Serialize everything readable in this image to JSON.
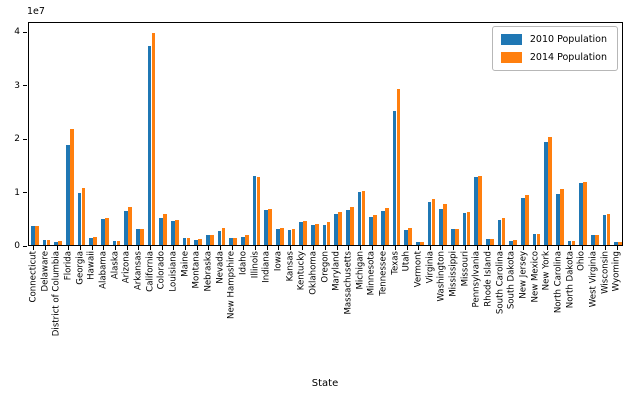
{
  "chart_data": {
    "type": "bar",
    "title": "",
    "xlabel": "State",
    "ylabel": "",
    "ylabel_offset_text": "1e7",
    "grid": false,
    "legend_position": "upper right",
    "ylim": [
      0,
      41950000
    ],
    "yticks": [
      {
        "value": 0,
        "label": "0"
      },
      {
        "value": 10000000,
        "label": "1"
      },
      {
        "value": 20000000,
        "label": "2"
      },
      {
        "value": 30000000,
        "label": "3"
      },
      {
        "value": 40000000,
        "label": "4"
      }
    ],
    "categories": [
      "Connecticut",
      "Delaware",
      "District of Columbia",
      "Florida",
      "Georgia",
      "Hawaii",
      "Alabama",
      "Alaska",
      "Arizona",
      "Arkansas",
      "California",
      "Colorado",
      "Louisiana",
      "Maine",
      "Montana",
      "Nebraska",
      "Nevada",
      "New Hampshire",
      "Idaho",
      "Illinois",
      "Indiana",
      "Iowa",
      "Kansas",
      "Kentucky",
      "Oklahoma",
      "Oregon",
      "Maryland",
      "Massachusetts",
      "Michigan",
      "Minnesota",
      "Tennessee",
      "Texas",
      "Utah",
      "Vermont",
      "Virginia",
      "Washington",
      "Mississippi",
      "Missouri",
      "Pennsylvania",
      "Rhode Island",
      "South Carolina",
      "South Dakota",
      "New Jersey",
      "New Mexico",
      "New York",
      "North Carolina",
      "North Dakota",
      "Ohio",
      "West Virginia",
      "Wisconsin",
      "Wyoming"
    ],
    "series": [
      {
        "name": "2010 Population",
        "color": "#1f77b4",
        "values": [
          3574097,
          897934,
          601723,
          18801310,
          9687653,
          1360301,
          4779736,
          710231,
          6392017,
          2915918,
          37253956,
          5029196,
          4533372,
          1328361,
          989415,
          1826341,
          2700551,
          1316470,
          1567582,
          12830632,
          6483802,
          3046355,
          2853118,
          4339367,
          3751351,
          3831074,
          5773552,
          6547629,
          9883640,
          5303925,
          6346105,
          25145561,
          2763885,
          625741,
          8001024,
          6724540,
          2967297,
          5988927,
          12702379,
          1052567,
          4625364,
          814180,
          8791894,
          2059179,
          19378102,
          9535483,
          672591,
          11536504,
          1852994,
          5686986,
          563626
        ]
      },
      {
        "name": "2014 Population",
        "color": "#ff7f0e",
        "values": [
          3605944,
          989948,
          689545,
          21700000,
          10711937,
          1455271,
          5024279,
          733391,
          7151502,
          3011524,
          39700000,
          5773714,
          4657757,
          1362359,
          1084225,
          1961504,
          3104614,
          1377529,
          1839106,
          12812508,
          6785528,
          3190369,
          2937880,
          4505836,
          3959353,
          4237256,
          6177224,
          7029917,
          10077331,
          5706494,
          6910840,
          29145505,
          3271616,
          643077,
          8631393,
          7705281,
          2961279,
          6154913,
          13002700,
          1097379,
          5118425,
          886667,
          9288994,
          2117522,
          20201249,
          10439388,
          779094,
          11799448,
          1793716,
          5893718,
          576851
        ]
      }
    ]
  }
}
